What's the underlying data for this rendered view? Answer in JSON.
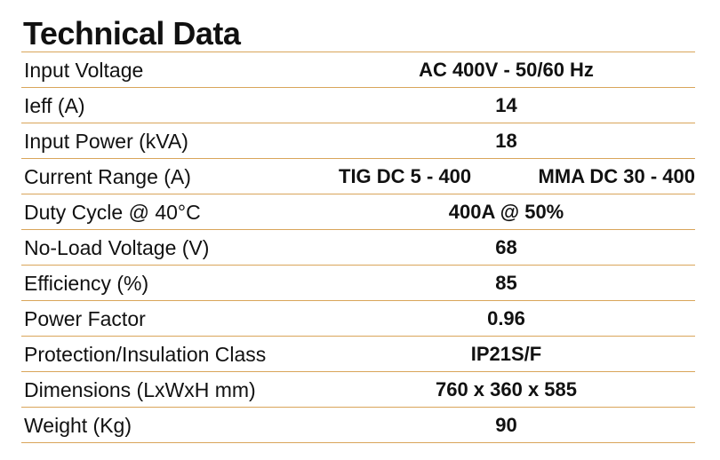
{
  "title": "Technical Data",
  "rows": [
    {
      "label": "Input Voltage",
      "value": "AC 400V - 50/60 Hz"
    },
    {
      "label": "Ieff (A)",
      "value": "14"
    },
    {
      "label": "Input Power (kVA)",
      "value": "18"
    },
    {
      "label": "Current Range (A)",
      "value_left": "TIG DC 5 - 400",
      "value_right": "MMA DC 30 - 400"
    },
    {
      "label": "Duty Cycle @ 40°C",
      "value": "400A @ 50%"
    },
    {
      "label": "No-Load Voltage (V)",
      "value": "68"
    },
    {
      "label": "Efficiency (%)",
      "value": "85"
    },
    {
      "label": "Power Factor",
      "value": "0.96"
    },
    {
      "label": "Protection/Insulation Class",
      "value": "IP21S/F"
    },
    {
      "label": "Dimensions (LxWxH mm)",
      "value": "760 x 360 x 585"
    },
    {
      "label": "Weight (Kg)",
      "value": "90"
    }
  ],
  "colors": {
    "rule": "#d9a55a",
    "text": "#111111"
  }
}
